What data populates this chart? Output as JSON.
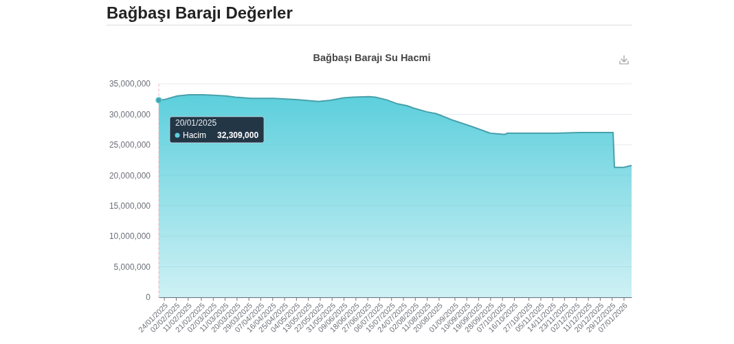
{
  "chart_data": {
    "type": "area",
    "title": "Bağbaşı Barajı Değerler",
    "subtitle": "Bağbaşı Barajı Su Hacmi",
    "x": [
      "2025-01-20",
      "2025-01-24",
      "2025-01-29",
      "2025-02-03",
      "2025-02-12",
      "2025-02-23",
      "2025-03-05",
      "2025-03-12",
      "2025-03-19",
      "2025-03-31",
      "2025-04-17",
      "2025-05-04",
      "2025-05-21",
      "2025-05-30",
      "2025-06-09",
      "2025-06-16",
      "2025-06-28",
      "2025-07-03",
      "2025-07-11",
      "2025-07-20",
      "2025-07-27",
      "2025-08-01",
      "2025-08-11",
      "2025-08-18",
      "2025-08-24",
      "2025-08-31",
      "2025-09-14",
      "2025-09-28",
      "2025-10-09",
      "2025-10-11",
      "2025-10-30",
      "2025-11-17",
      "2025-12-04",
      "2025-12-30",
      "2025-12-31",
      "2026-01-07",
      "2026-01-13"
    ],
    "series": [
      {
        "name": "Hacim",
        "color": "#5ccfdc",
        "values": [
          32309000,
          32400000,
          32700000,
          33000000,
          33200000,
          33200000,
          33100000,
          33000000,
          32800000,
          32600000,
          32600000,
          32400000,
          32100000,
          32300000,
          32700000,
          32800000,
          32900000,
          32800000,
          32400000,
          31700000,
          31400000,
          31000000,
          30400000,
          30100000,
          29600000,
          29000000,
          28000000,
          26900000,
          26700000,
          26900000,
          26900000,
          26900000,
          27000000,
          27000000,
          21300000,
          21300000,
          21600000
        ]
      }
    ],
    "xlim": [
      "2025-01-20",
      "2026-01-13"
    ],
    "xticks": [
      {
        "value": "2025-01-24",
        "label": "24/01/2025"
      },
      {
        "value": "2025-02-02",
        "label": "02/02/2025"
      },
      {
        "value": "2025-02-11",
        "label": "11/02/2025"
      },
      {
        "value": "2025-02-21",
        "label": "21/02/2025"
      },
      {
        "value": "2025-03-02",
        "label": "02/03/2025"
      },
      {
        "value": "2025-03-11",
        "label": "11/03/2025"
      },
      {
        "value": "2025-03-20",
        "label": "20/03/2025"
      },
      {
        "value": "2025-03-29",
        "label": "29/03/2025"
      },
      {
        "value": "2025-04-07",
        "label": "07/04/2025"
      },
      {
        "value": "2025-04-16",
        "label": "16/04/2025"
      },
      {
        "value": "2025-04-25",
        "label": "25/04/2025"
      },
      {
        "value": "2025-05-04",
        "label": "04/05/2025"
      },
      {
        "value": "2025-05-13",
        "label": "13/05/2025"
      },
      {
        "value": "2025-05-22",
        "label": "22/05/2025"
      },
      {
        "value": "2025-05-31",
        "label": "31/05/2025"
      },
      {
        "value": "2025-06-09",
        "label": "09/06/2025"
      },
      {
        "value": "2025-06-18",
        "label": "18/06/2025"
      },
      {
        "value": "2025-06-27",
        "label": "27/06/2025"
      },
      {
        "value": "2025-07-06",
        "label": "06/07/2025"
      },
      {
        "value": "2025-07-15",
        "label": "15/07/2025"
      },
      {
        "value": "2025-07-24",
        "label": "24/07/2025"
      },
      {
        "value": "2025-08-02",
        "label": "02/08/2025"
      },
      {
        "value": "2025-08-11",
        "label": "11/08/2025"
      },
      {
        "value": "2025-08-20",
        "label": "20/08/2025"
      },
      {
        "value": "2025-09-01",
        "label": "01/09/2025"
      },
      {
        "value": "2025-09-10",
        "label": "10/09/2025"
      },
      {
        "value": "2025-09-19",
        "label": "19/09/2025"
      },
      {
        "value": "2025-09-28",
        "label": "28/09/2025"
      },
      {
        "value": "2025-10-07",
        "label": "07/10/2025"
      },
      {
        "value": "2025-10-16",
        "label": "16/10/2025"
      },
      {
        "value": "2025-10-27",
        "label": "27/10/2025"
      },
      {
        "value": "2025-11-05",
        "label": "05/11/2025"
      },
      {
        "value": "2025-11-14",
        "label": "14/11/2025"
      },
      {
        "value": "2025-11-23",
        "label": "23/11/2025"
      },
      {
        "value": "2025-12-02",
        "label": "02/12/2025"
      },
      {
        "value": "2025-12-11",
        "label": "11/12/2025"
      },
      {
        "value": "2025-12-20",
        "label": "20/12/2025"
      },
      {
        "value": "2025-12-29",
        "label": "29/12/2025"
      },
      {
        "value": "2026-01-07",
        "label": "07/01/2026"
      }
    ],
    "ylim": [
      0,
      35000000
    ],
    "yticks": [
      0,
      {
        "value": 5000000,
        "label": "5,000,000"
      },
      {
        "value": 10000000,
        "label": "10,000,000"
      },
      {
        "value": 15000000,
        "label": "15,000,000"
      },
      {
        "value": 20000000,
        "label": "20,000,000"
      },
      {
        "value": 25000000,
        "label": "25,000,000"
      },
      {
        "value": 30000000,
        "label": "30,000,000"
      },
      {
        "value": 35000000,
        "label": "35,000,000"
      }
    ],
    "grid": "y",
    "ref_lines": [
      {
        "axis": "x",
        "value": "2025-01-20",
        "color": "#f0b4be",
        "line_style": "dashed"
      }
    ],
    "annotations": [
      {
        "text": "20/01/2025",
        "x": "2025-01-20",
        "y": 32309000
      },
      "32,309,000"
    ]
  }
}
